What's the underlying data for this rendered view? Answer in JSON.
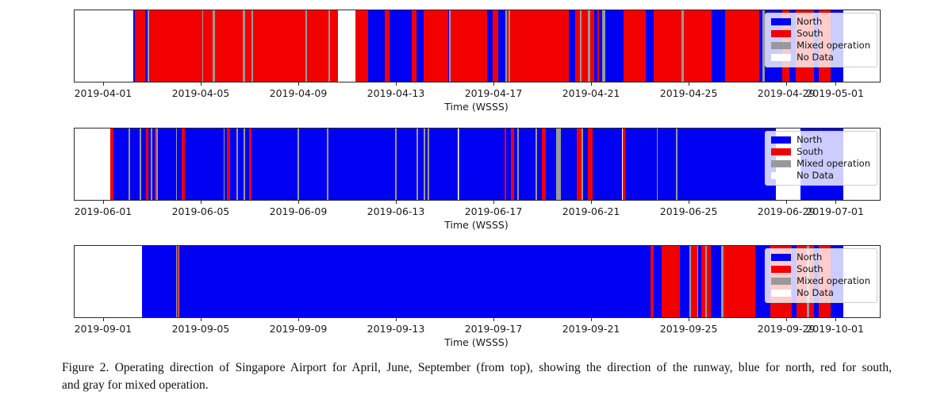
{
  "caption": {
    "full": "Figure 2. Operating direction of Singapore Airport for April, June, September (from top), showing the direction of the runway, blue for north, red for south, and gray for mixed operation.",
    "lines": [
      "Figure 2. Operating direction of Singapore Airport for April, June, September (from top), showing the direction of the runway, blue for north, red for south,",
      "and gray for mixed operation."
    ]
  },
  "chart_data": {
    "type": "bar",
    "subtype": "categorical-timeline-stripes",
    "axis": {
      "label": "Time (WSSS)",
      "day_min": -1.2,
      "day_max": 31.8
    },
    "colors": {
      "N": "#0000f2",
      "S": "#f20000",
      "M": "#999999",
      "W": "#ffffff"
    },
    "legend": {
      "items": [
        {
          "key": "N",
          "label": "North"
        },
        {
          "key": "S",
          "label": "South"
        },
        {
          "key": "M",
          "label": "Mixed operation"
        },
        {
          "key": "W",
          "label": "No Data"
        }
      ]
    },
    "charts": [
      {
        "x_tick_days": [
          0,
          4,
          8,
          12,
          16,
          20,
          24,
          28,
          30
        ],
        "x_tick_labels": [
          "2019-04-01",
          "2019-04-05",
          "2019-04-09",
          "2019-04-13",
          "2019-04-17",
          "2019-04-21",
          "2019-04-25",
          "2019-04-29",
          "2019-05-01"
        ],
        "segments": [
          [
            -1.2,
            1.2,
            "W"
          ],
          [
            1.2,
            1.28,
            "N"
          ],
          [
            1.28,
            1.7,
            "S"
          ],
          [
            1.7,
            1.8,
            "N"
          ],
          [
            1.8,
            1.87,
            "M"
          ],
          [
            1.87,
            4.02,
            "S"
          ],
          [
            4.02,
            4.08,
            "M"
          ],
          [
            4.08,
            4.45,
            "S"
          ],
          [
            4.45,
            4.55,
            "M"
          ],
          [
            4.55,
            5.7,
            "S"
          ],
          [
            5.7,
            5.78,
            "M"
          ],
          [
            5.78,
            6.04,
            "S"
          ],
          [
            6.04,
            6.1,
            "M"
          ],
          [
            6.1,
            8.25,
            "S"
          ],
          [
            8.25,
            8.33,
            "M"
          ],
          [
            8.33,
            9.2,
            "S"
          ],
          [
            9.2,
            9.28,
            "M"
          ],
          [
            9.28,
            9.6,
            "S"
          ],
          [
            9.6,
            10.3,
            "W"
          ],
          [
            10.3,
            10.82,
            "S"
          ],
          [
            10.82,
            11.52,
            "N"
          ],
          [
            11.52,
            11.72,
            "S"
          ],
          [
            11.72,
            12.62,
            "N"
          ],
          [
            12.62,
            12.82,
            "S"
          ],
          [
            12.82,
            13.1,
            "N"
          ],
          [
            13.1,
            14.1,
            "S"
          ],
          [
            14.1,
            14.15,
            "N"
          ],
          [
            14.15,
            14.21,
            "M"
          ],
          [
            14.21,
            15.7,
            "S"
          ],
          [
            15.7,
            15.95,
            "N"
          ],
          [
            15.95,
            16.15,
            "S"
          ],
          [
            16.15,
            16.45,
            "N"
          ],
          [
            16.45,
            16.51,
            "M"
          ],
          [
            16.51,
            16.58,
            "S"
          ],
          [
            16.58,
            16.64,
            "M"
          ],
          [
            16.64,
            19.05,
            "S"
          ],
          [
            19.05,
            19.3,
            "N"
          ],
          [
            19.3,
            19.5,
            "S"
          ],
          [
            19.5,
            19.56,
            "M"
          ],
          [
            19.56,
            19.85,
            "S"
          ],
          [
            19.85,
            19.92,
            "M"
          ],
          [
            19.92,
            20.08,
            "S"
          ],
          [
            20.08,
            20.22,
            "N"
          ],
          [
            20.22,
            20.3,
            "S"
          ],
          [
            20.3,
            20.42,
            "N"
          ],
          [
            20.42,
            20.55,
            "M"
          ],
          [
            20.55,
            21.3,
            "N"
          ],
          [
            21.3,
            22.2,
            "S"
          ],
          [
            22.2,
            22.55,
            "N"
          ],
          [
            22.55,
            23.68,
            "S"
          ],
          [
            23.68,
            23.78,
            "M"
          ],
          [
            23.78,
            24.9,
            "S"
          ],
          [
            24.9,
            25.45,
            "N"
          ],
          [
            25.45,
            26.85,
            "S"
          ],
          [
            26.85,
            27.0,
            "N"
          ],
          [
            27.0,
            27.08,
            "M"
          ],
          [
            27.08,
            27.8,
            "N"
          ],
          [
            27.8,
            28.1,
            "S"
          ],
          [
            28.1,
            28.35,
            "N"
          ],
          [
            28.35,
            29.1,
            "S"
          ],
          [
            29.1,
            29.3,
            "N"
          ],
          [
            29.3,
            29.8,
            "S"
          ],
          [
            29.8,
            30.3,
            "N"
          ],
          [
            30.3,
            31.8,
            "W"
          ]
        ]
      },
      {
        "x_tick_days": [
          0,
          4,
          8,
          12,
          16,
          20,
          24,
          28,
          30
        ],
        "x_tick_labels": [
          "2019-06-01",
          "2019-06-05",
          "2019-06-09",
          "2019-06-13",
          "2019-06-17",
          "2019-06-21",
          "2019-06-25",
          "2019-06-29",
          "2019-07-01"
        ],
        "segments": [
          [
            -1.2,
            0.26,
            "W"
          ],
          [
            0.26,
            0.39,
            "S"
          ],
          [
            0.39,
            1.0,
            "N"
          ],
          [
            1.0,
            1.06,
            "M"
          ],
          [
            1.06,
            1.48,
            "N"
          ],
          [
            1.48,
            1.54,
            "M"
          ],
          [
            1.54,
            1.72,
            "N"
          ],
          [
            1.72,
            1.82,
            "S"
          ],
          [
            1.82,
            1.93,
            "N"
          ],
          [
            1.93,
            1.99,
            "M"
          ],
          [
            1.99,
            2.08,
            "N"
          ],
          [
            2.08,
            2.16,
            "S"
          ],
          [
            2.16,
            2.22,
            "M"
          ],
          [
            2.22,
            2.95,
            "N"
          ],
          [
            2.95,
            3.01,
            "M"
          ],
          [
            3.01,
            3.2,
            "N"
          ],
          [
            3.2,
            3.33,
            "S"
          ],
          [
            3.33,
            4.9,
            "N"
          ],
          [
            4.9,
            4.96,
            "M"
          ],
          [
            4.96,
            5.05,
            "N"
          ],
          [
            5.05,
            5.17,
            "S"
          ],
          [
            5.17,
            5.44,
            "N"
          ],
          [
            5.44,
            5.5,
            "M"
          ],
          [
            5.5,
            5.72,
            "N"
          ],
          [
            5.72,
            5.78,
            "M"
          ],
          [
            5.78,
            5.94,
            "N"
          ],
          [
            5.94,
            6.06,
            "S"
          ],
          [
            6.06,
            7.93,
            "N"
          ],
          [
            7.93,
            7.99,
            "M"
          ],
          [
            7.99,
            9.13,
            "N"
          ],
          [
            9.13,
            9.19,
            "M"
          ],
          [
            9.19,
            11.93,
            "N"
          ],
          [
            11.93,
            12.0,
            "M"
          ],
          [
            12.0,
            12.8,
            "N"
          ],
          [
            12.8,
            12.87,
            "M"
          ],
          [
            12.87,
            13.12,
            "N"
          ],
          [
            13.12,
            13.18,
            "M"
          ],
          [
            13.18,
            13.28,
            "N"
          ],
          [
            13.28,
            13.34,
            "M"
          ],
          [
            13.34,
            14.52,
            "N"
          ],
          [
            14.52,
            14.58,
            "M"
          ],
          [
            14.58,
            16.42,
            "N"
          ],
          [
            16.42,
            16.48,
            "S"
          ],
          [
            16.48,
            16.68,
            "N"
          ],
          [
            16.68,
            16.8,
            "S"
          ],
          [
            16.8,
            16.95,
            "N"
          ],
          [
            16.95,
            17.01,
            "M"
          ],
          [
            17.01,
            17.68,
            "N"
          ],
          [
            17.68,
            17.74,
            "M"
          ],
          [
            17.74,
            17.94,
            "N"
          ],
          [
            17.94,
            18.12,
            "S"
          ],
          [
            18.12,
            18.55,
            "N"
          ],
          [
            18.55,
            18.74,
            "M"
          ],
          [
            18.74,
            19.38,
            "N"
          ],
          [
            19.38,
            19.57,
            "S"
          ],
          [
            19.57,
            19.64,
            "M"
          ],
          [
            19.64,
            19.85,
            "N"
          ],
          [
            19.85,
            20.03,
            "S"
          ],
          [
            20.03,
            21.25,
            "N"
          ],
          [
            21.25,
            21.37,
            "S"
          ],
          [
            21.37,
            22.65,
            "N"
          ],
          [
            22.65,
            22.71,
            "M"
          ],
          [
            22.71,
            23.45,
            "N"
          ],
          [
            23.45,
            23.51,
            "M"
          ],
          [
            23.51,
            27.53,
            "N"
          ],
          [
            27.53,
            28.55,
            "W"
          ],
          [
            28.55,
            30.3,
            "N"
          ],
          [
            30.3,
            31.8,
            "W"
          ]
        ]
      },
      {
        "x_tick_days": [
          0,
          4,
          8,
          12,
          16,
          20,
          24,
          28,
          30
        ],
        "x_tick_labels": [
          "2019-09-01",
          "2019-09-05",
          "2019-09-09",
          "2019-09-13",
          "2019-09-17",
          "2019-09-21",
          "2019-09-25",
          "2019-09-29",
          "2019-10-01"
        ],
        "segments": [
          [
            -1.2,
            1.55,
            "W"
          ],
          [
            1.55,
            2.95,
            "N"
          ],
          [
            2.95,
            3.0,
            "M"
          ],
          [
            3.0,
            3.05,
            "S"
          ],
          [
            3.05,
            3.1,
            "M"
          ],
          [
            3.1,
            22.4,
            "N"
          ],
          [
            22.4,
            22.55,
            "S"
          ],
          [
            22.55,
            22.85,
            "N"
          ],
          [
            22.85,
            23.6,
            "S"
          ],
          [
            23.6,
            24.0,
            "N"
          ],
          [
            24.0,
            24.06,
            "M"
          ],
          [
            24.06,
            24.32,
            "S"
          ],
          [
            24.32,
            24.36,
            "M"
          ],
          [
            24.36,
            24.5,
            "N"
          ],
          [
            24.5,
            24.64,
            "S"
          ],
          [
            24.64,
            24.72,
            "M"
          ],
          [
            24.72,
            24.88,
            "S"
          ],
          [
            24.88,
            25.3,
            "N"
          ],
          [
            25.3,
            25.38,
            "M"
          ],
          [
            25.38,
            26.7,
            "S"
          ],
          [
            26.7,
            27.3,
            "N"
          ],
          [
            27.3,
            28.2,
            "S"
          ],
          [
            28.2,
            28.4,
            "N"
          ],
          [
            28.4,
            28.8,
            "S"
          ],
          [
            28.8,
            28.9,
            "M"
          ],
          [
            28.9,
            29.1,
            "S"
          ],
          [
            29.1,
            29.3,
            "N"
          ],
          [
            29.3,
            29.8,
            "S"
          ],
          [
            29.8,
            30.3,
            "N"
          ],
          [
            30.3,
            31.8,
            "W"
          ]
        ]
      }
    ]
  }
}
